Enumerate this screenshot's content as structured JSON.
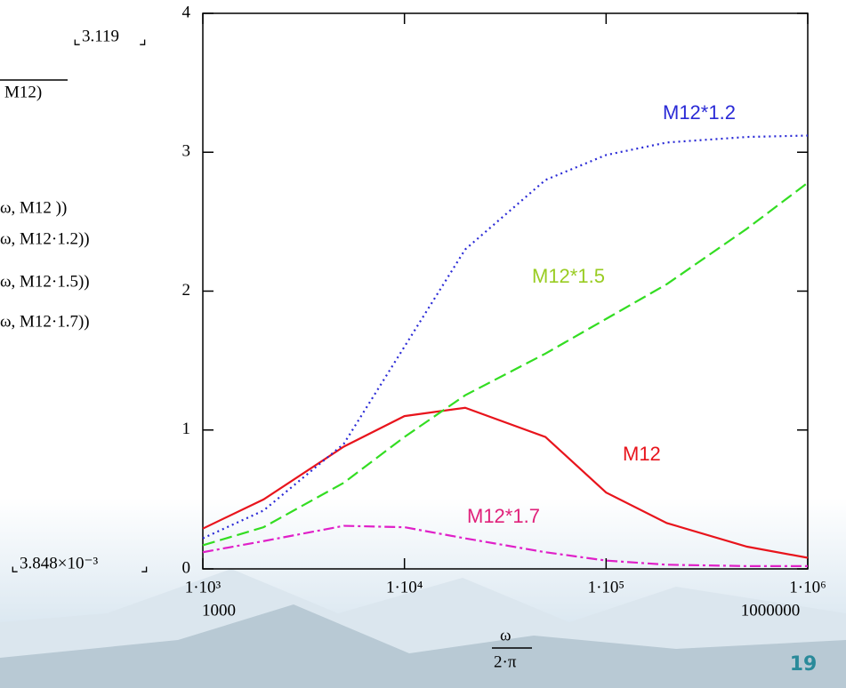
{
  "chart_data": {
    "type": "line",
    "x": [
      1000,
      2000,
      5000,
      10000,
      20000,
      50000,
      100000,
      200000,
      500000,
      1000000
    ],
    "series": [
      {
        "name": "M12",
        "color": "#e8141c",
        "dash": "solid",
        "values": [
          0.29,
          0.5,
          0.88,
          1.1,
          1.16,
          0.95,
          0.55,
          0.33,
          0.16,
          0.08
        ]
      },
      {
        "name": "M12*1.2",
        "color": "#2a2ad6",
        "dash": "dotted",
        "values": [
          0.22,
          0.42,
          0.9,
          1.6,
          2.3,
          2.8,
          2.98,
          3.07,
          3.11,
          3.12
        ]
      },
      {
        "name": "M12*1.5",
        "color": "#33dd22",
        "dash": "dashed",
        "values": [
          0.17,
          0.3,
          0.62,
          0.95,
          1.25,
          1.55,
          1.8,
          2.05,
          2.45,
          2.78
        ]
      },
      {
        "name": "M12*1.7",
        "color": "#e020c8",
        "dash": "dashdot",
        "values": [
          0.12,
          0.2,
          0.31,
          0.3,
          0.22,
          0.12,
          0.06,
          0.03,
          0.02,
          0.02
        ]
      }
    ],
    "label_colors": [
      "#e8141c",
      "#2a2ad6",
      "#99cc22",
      "#e0207a"
    ],
    "xscale": "log",
    "xlim": [
      1000,
      1000000
    ],
    "xticks": [
      {
        "value": 1000,
        "label": "1·10³"
      },
      {
        "value": 10000,
        "label": "1·10⁴"
      },
      {
        "value": 100000,
        "label": "1·10⁵"
      },
      {
        "value": 1000000,
        "label": "1·10⁶"
      }
    ],
    "x_limit_labels": [
      "1000",
      "1000000"
    ],
    "x_label_top": "ω",
    "x_label_bottom": "2·π",
    "ylim": [
      0,
      4
    ],
    "yticks": [
      0,
      1,
      2,
      3,
      4
    ]
  },
  "side_text": {
    "max_marker": "3.119",
    "min_marker": "3.848×10⁻³",
    "lines": [
      "M12)",
      "ω, M12 ))",
      "ω, M12·1.2))",
      "ω, M12·1.5))",
      "ω, M12·1.7))"
    ]
  },
  "page_number": "19"
}
